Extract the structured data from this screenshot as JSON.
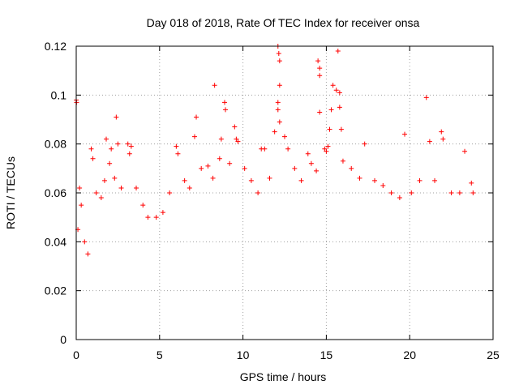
{
  "chart_data": {
    "type": "scatter",
    "title": "Day 018 of 2018, Rate Of TEC Index for receiver onsa",
    "xlabel": "GPS time / hours",
    "ylabel": "ROTI / TECUs",
    "xlim": [
      0,
      25
    ],
    "ylim": [
      0,
      0.12
    ],
    "x_ticks": [
      0,
      5,
      10,
      15,
      20,
      25
    ],
    "x_tick_labels": [
      "0",
      "5",
      "10",
      "15",
      "20",
      "25"
    ],
    "y_ticks": [
      0,
      0.02,
      0.04,
      0.06,
      0.08,
      0.1,
      0.12
    ],
    "y_tick_labels": [
      "0",
      "0.02",
      "0.04",
      "0.06",
      "0.08",
      "0.1",
      "0.12"
    ],
    "grid": true,
    "marker": "+",
    "marker_color": "#ff0000",
    "series": [
      {
        "points": [
          [
            0.0,
            0.098
          ],
          [
            0.02,
            0.097
          ],
          [
            0.1,
            0.045
          ],
          [
            0.2,
            0.062
          ],
          [
            0.3,
            0.055
          ],
          [
            0.5,
            0.04
          ],
          [
            0.7,
            0.035
          ],
          [
            0.9,
            0.078
          ],
          [
            1.0,
            0.074
          ],
          [
            1.2,
            0.06
          ],
          [
            1.5,
            0.058
          ],
          [
            1.7,
            0.065
          ],
          [
            1.8,
            0.082
          ],
          [
            2.0,
            0.072
          ],
          [
            2.1,
            0.078
          ],
          [
            2.3,
            0.066
          ],
          [
            2.4,
            0.091
          ],
          [
            2.5,
            0.08
          ],
          [
            2.7,
            0.062
          ],
          [
            3.1,
            0.08
          ],
          [
            3.2,
            0.076
          ],
          [
            3.3,
            0.079
          ],
          [
            3.6,
            0.062
          ],
          [
            4.0,
            0.055
          ],
          [
            4.3,
            0.05
          ],
          [
            4.8,
            0.05
          ],
          [
            5.2,
            0.052
          ],
          [
            5.6,
            0.06
          ],
          [
            6.0,
            0.079
          ],
          [
            6.1,
            0.076
          ],
          [
            6.5,
            0.065
          ],
          [
            6.8,
            0.062
          ],
          [
            7.1,
            0.083
          ],
          [
            7.2,
            0.091
          ],
          [
            7.5,
            0.07
          ],
          [
            7.9,
            0.071
          ],
          [
            8.2,
            0.066
          ],
          [
            8.3,
            0.104
          ],
          [
            8.6,
            0.074
          ],
          [
            8.7,
            0.082
          ],
          [
            8.9,
            0.097
          ],
          [
            8.95,
            0.094
          ],
          [
            9.2,
            0.072
          ],
          [
            9.5,
            0.087
          ],
          [
            9.6,
            0.082
          ],
          [
            9.7,
            0.081
          ],
          [
            10.1,
            0.07
          ],
          [
            10.5,
            0.065
          ],
          [
            10.9,
            0.06
          ],
          [
            11.1,
            0.078
          ],
          [
            11.3,
            0.078
          ],
          [
            11.6,
            0.066
          ],
          [
            11.9,
            0.085
          ],
          [
            12.1,
            0.12
          ],
          [
            12.15,
            0.117
          ],
          [
            12.2,
            0.114
          ],
          [
            12.2,
            0.104
          ],
          [
            12.1,
            0.097
          ],
          [
            12.1,
            0.094
          ],
          [
            12.2,
            0.089
          ],
          [
            12.5,
            0.083
          ],
          [
            12.7,
            0.078
          ],
          [
            13.1,
            0.07
          ],
          [
            13.5,
            0.065
          ],
          [
            13.9,
            0.076
          ],
          [
            14.1,
            0.072
          ],
          [
            14.4,
            0.069
          ],
          [
            14.5,
            0.114
          ],
          [
            14.6,
            0.111
          ],
          [
            14.6,
            0.108
          ],
          [
            14.6,
            0.093
          ],
          [
            14.9,
            0.078
          ],
          [
            15.0,
            0.077
          ],
          [
            15.1,
            0.079
          ],
          [
            15.2,
            0.086
          ],
          [
            15.3,
            0.094
          ],
          [
            15.4,
            0.104
          ],
          [
            15.6,
            0.102
          ],
          [
            15.7,
            0.118
          ],
          [
            15.8,
            0.101
          ],
          [
            15.8,
            0.095
          ],
          [
            15.9,
            0.086
          ],
          [
            16.0,
            0.073
          ],
          [
            16.5,
            0.07
          ],
          [
            17.0,
            0.066
          ],
          [
            17.3,
            0.08
          ],
          [
            17.9,
            0.065
          ],
          [
            18.4,
            0.063
          ],
          [
            18.9,
            0.06
          ],
          [
            19.4,
            0.058
          ],
          [
            19.7,
            0.084
          ],
          [
            20.1,
            0.06
          ],
          [
            20.6,
            0.065
          ],
          [
            21.0,
            0.099
          ],
          [
            21.2,
            0.081
          ],
          [
            21.5,
            0.065
          ],
          [
            21.9,
            0.085
          ],
          [
            22.0,
            0.082
          ],
          [
            22.5,
            0.06
          ],
          [
            23.0,
            0.06
          ],
          [
            23.3,
            0.077
          ],
          [
            23.7,
            0.064
          ],
          [
            23.8,
            0.06
          ]
        ]
      }
    ]
  }
}
